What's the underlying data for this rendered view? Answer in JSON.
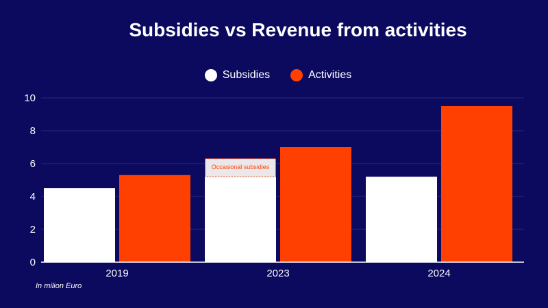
{
  "chart_data": {
    "type": "bar",
    "title": "Subsidies vs Revenue from activities",
    "categories": [
      "2019",
      "2023",
      "2024"
    ],
    "series": [
      {
        "name": "Subsidies",
        "values": [
          4.5,
          5.2,
          5.2
        ],
        "color": "#ffffff"
      },
      {
        "name": "Activities",
        "values": [
          5.3,
          7.0,
          9.5
        ],
        "color": "#ff4000"
      }
    ],
    "ylim": [
      0,
      10
    ],
    "yticks": [
      0,
      2,
      4,
      6,
      8,
      10
    ],
    "legend_position": "top-center",
    "annotation": {
      "text": "Occasional subsidies",
      "category": "2023",
      "series": "Subsidies",
      "from": 5.2,
      "to": 6.3
    },
    "footnote": "In milion Euro"
  },
  "colors": {
    "background": "#0c0a5e",
    "gridline": "#2a2880",
    "annotation_fill": "#ece8ea"
  }
}
